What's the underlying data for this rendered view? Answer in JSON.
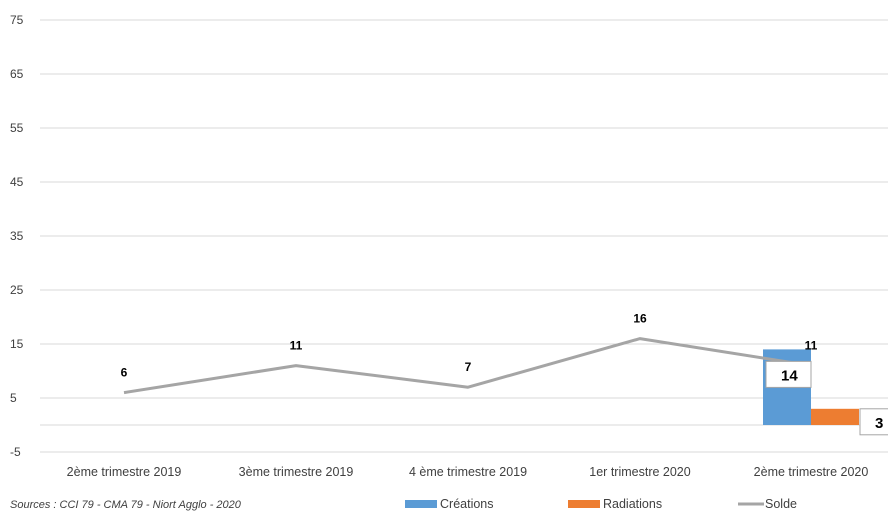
{
  "chart_data": {
    "type": "bar",
    "categories": [
      "2ème trimestre 2019",
      "3ème trimestre 2019",
      "4 ème trimestre 2019",
      "1er trimestre 2020",
      "2ème trimestre 2020"
    ],
    "ylim": [
      -5,
      75
    ],
    "yticks": [
      -5,
      5,
      15,
      25,
      35,
      45,
      55,
      65,
      75
    ],
    "grid": true,
    "series": [
      {
        "name": "Créations",
        "kind": "bar",
        "color": "#5b9bd5",
        "values": [
          null,
          null,
          null,
          null,
          14
        ],
        "box_labels": [
          "",
          "",
          "",
          "",
          "14"
        ]
      },
      {
        "name": "Radiations",
        "kind": "bar",
        "color": "#ed7d31",
        "values": [
          null,
          null,
          null,
          null,
          3
        ],
        "box_labels": [
          "",
          "",
          "",
          "",
          "3"
        ]
      },
      {
        "name": "Solde",
        "kind": "line",
        "color": "#a5a5a5",
        "values": [
          6,
          11,
          7,
          16,
          11
        ],
        "data_labels": [
          "6",
          "11",
          "7",
          "16",
          "11"
        ]
      }
    ],
    "legend": {
      "position": "bottom"
    },
    "source": "Sources : CCI 79 - CMA 79 - Niort Agglo - 2020"
  }
}
